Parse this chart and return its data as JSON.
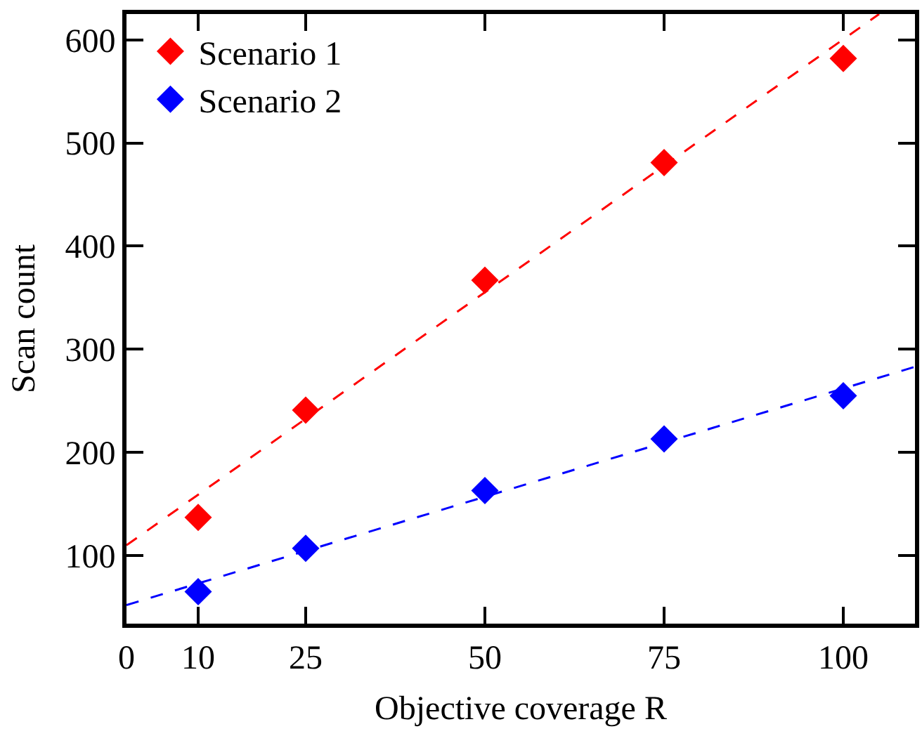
{
  "chart_data": {
    "type": "scatter",
    "xlabel": "Objective coverage R",
    "ylabel": "Scan count",
    "x": [
      10,
      25,
      50,
      75,
      100
    ],
    "series": [
      {
        "name": "Scenario 1",
        "color": "#ff0000",
        "values": [
          137,
          241,
          367,
          481,
          582
        ]
      },
      {
        "name": "Scenario 2",
        "color": "#0000ff",
        "values": [
          65,
          107,
          163,
          213,
          255
        ]
      },
      {
        "type": "line",
        "marker": "none",
        "color": "#ff0000",
        "line_style": "dashed",
        "x": [
          0,
          105
        ],
        "values": [
          110,
          625
        ]
      },
      {
        "type": "line",
        "marker": "none",
        "color": "#0000ff",
        "line_style": "dashed",
        "x": [
          0,
          110
        ],
        "values": [
          52,
          283
        ]
      }
    ],
    "marker": "diamond",
    "legend": "top left",
    "xlim": [
      0,
      110
    ],
    "xticks": [
      0,
      10,
      25,
      50,
      75,
      100
    ],
    "ylim": [
      34,
      625
    ],
    "yticks": [
      100,
      200,
      300,
      400,
      500,
      600
    ]
  }
}
